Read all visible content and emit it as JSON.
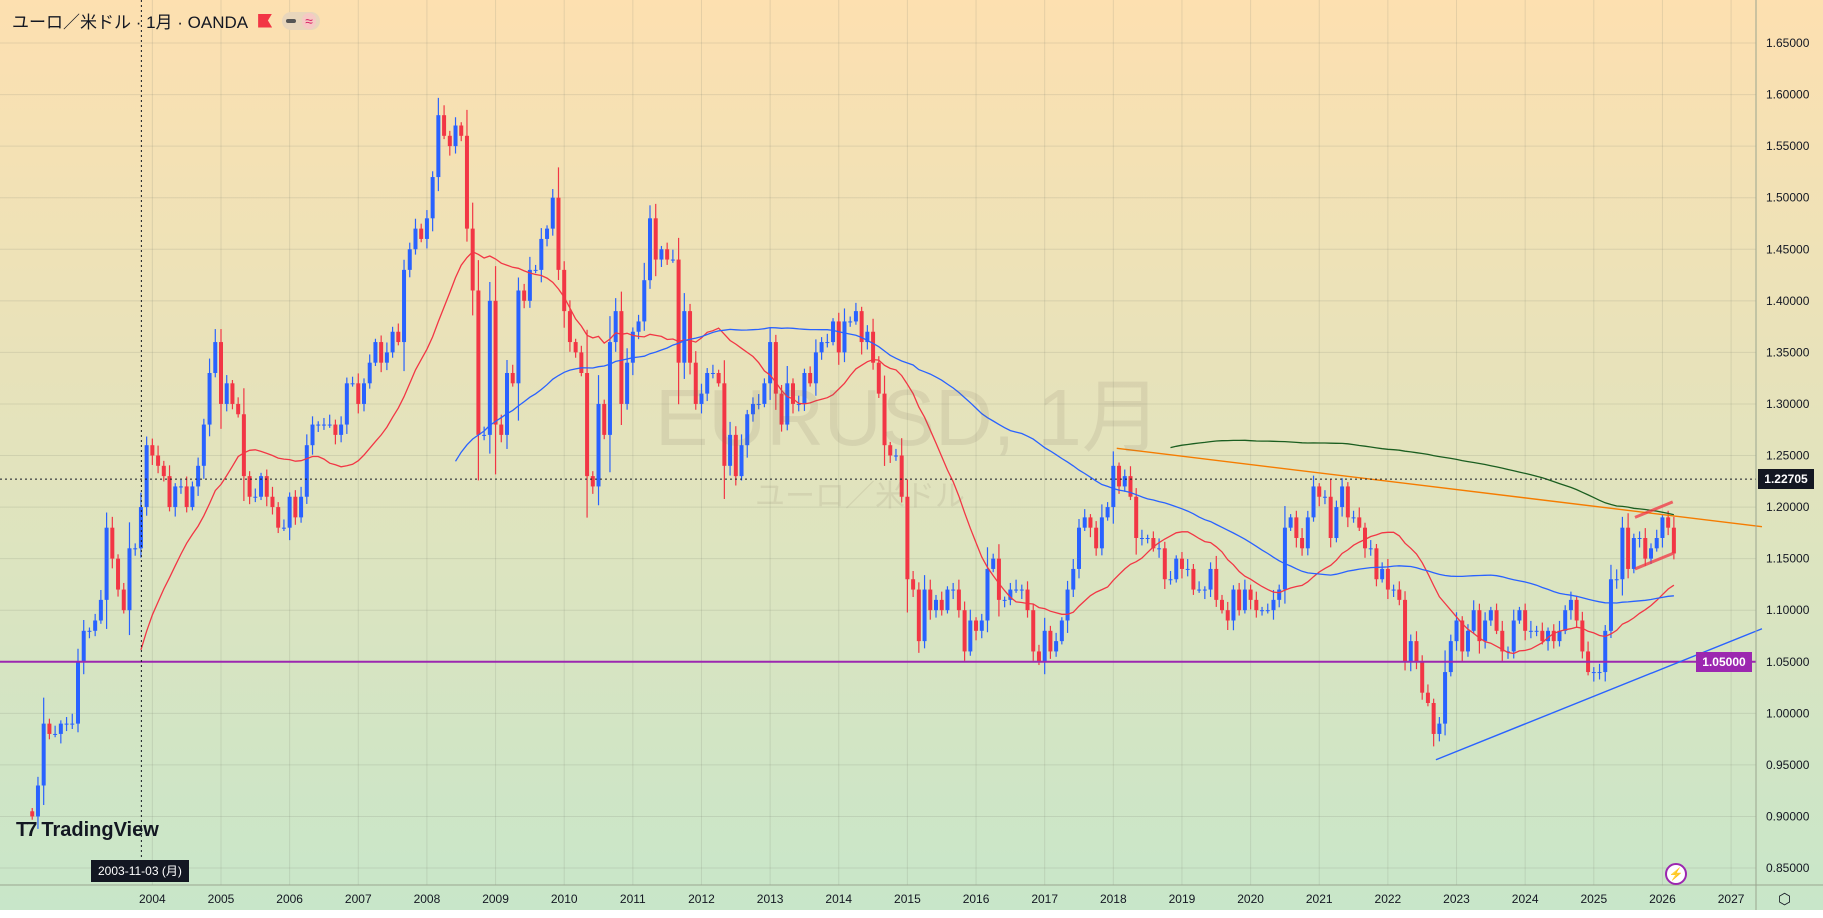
{
  "header": {
    "symbol_title": "ユーロ／米ドル · 1月 · OANDA"
  },
  "watermark": {
    "symbol": "EURUSD, 1月",
    "name": "ユーロ／米ドル"
  },
  "branding": {
    "logo_text": "TradingView"
  },
  "crosshair": {
    "date_label": "2003-11-03 (月)",
    "price_label": "1.22705",
    "price": 1.22705,
    "time": 2003.84
  },
  "colors": {
    "up": "#2962ff",
    "down": "#f23645",
    "ma_short": "#f23645",
    "ma_mid": "#2962ff",
    "ma_long": "#1b5e20",
    "bg_top": "#fde0b0",
    "bg_bottom": "#c8e6c9",
    "hline": "#9c27b0",
    "trend_resistance": "#f57c00",
    "trend_support": "#2962ff"
  },
  "chart_data": {
    "type": "candlestick",
    "title": "EURUSD, 1月",
    "interval": "1M",
    "start": 2002.25,
    "first_open": 0.905,
    "monthly_closes": {
      "2002": [
        0.9,
        0.93,
        0.99,
        0.98,
        0.98,
        0.99,
        0.99,
        0.99,
        1.05
      ],
      "2003": [
        1.08,
        1.08,
        1.09,
        1.11,
        1.18,
        1.15,
        1.12,
        1.1,
        1.16,
        1.16,
        1.2,
        1.26
      ],
      "2004": [
        1.25,
        1.24,
        1.23,
        1.2,
        1.22,
        1.22,
        1.2,
        1.22,
        1.24,
        1.28,
        1.33,
        1.36
      ],
      "2005": [
        1.3,
        1.32,
        1.3,
        1.29,
        1.23,
        1.21,
        1.21,
        1.23,
        1.21,
        1.2,
        1.18,
        1.18
      ],
      "2006": [
        1.21,
        1.19,
        1.21,
        1.26,
        1.28,
        1.28,
        1.28,
        1.28,
        1.27,
        1.28,
        1.32,
        1.32
      ],
      "2007": [
        1.3,
        1.32,
        1.34,
        1.36,
        1.34,
        1.35,
        1.37,
        1.36,
        1.43,
        1.45,
        1.47,
        1.46
      ],
      "2008": [
        1.48,
        1.52,
        1.58,
        1.56,
        1.55,
        1.57,
        1.56,
        1.47,
        1.41,
        1.27,
        1.27,
        1.4
      ],
      "2009": [
        1.28,
        1.27,
        1.33,
        1.32,
        1.41,
        1.4,
        1.43,
        1.43,
        1.46,
        1.47,
        1.5,
        1.43
      ],
      "2010": [
        1.39,
        1.36,
        1.35,
        1.33,
        1.23,
        1.22,
        1.3,
        1.27,
        1.36,
        1.39,
        1.3,
        1.34
      ],
      "2011": [
        1.37,
        1.38,
        1.42,
        1.48,
        1.44,
        1.45,
        1.44,
        1.44,
        1.34,
        1.39,
        1.34,
        1.3
      ],
      "2012": [
        1.31,
        1.33,
        1.33,
        1.32,
        1.24,
        1.27,
        1.23,
        1.26,
        1.29,
        1.3,
        1.3,
        1.32
      ],
      "2013": [
        1.36,
        1.31,
        1.28,
        1.32,
        1.3,
        1.3,
        1.33,
        1.32,
        1.35,
        1.36,
        1.36,
        1.38
      ],
      "2014": [
        1.35,
        1.38,
        1.38,
        1.39,
        1.36,
        1.37,
        1.34,
        1.31,
        1.26,
        1.25,
        1.25,
        1.21
      ],
      "2015": [
        1.13,
        1.12,
        1.07,
        1.12,
        1.1,
        1.11,
        1.1,
        1.12,
        1.12,
        1.1,
        1.06,
        1.09
      ],
      "2016": [
        1.08,
        1.09,
        1.14,
        1.15,
        1.11,
        1.11,
        1.12,
        1.12,
        1.12,
        1.1,
        1.06,
        1.05
      ],
      "2017": [
        1.08,
        1.06,
        1.07,
        1.09,
        1.12,
        1.14,
        1.18,
        1.19,
        1.18,
        1.16,
        1.19,
        1.2
      ],
      "2018": [
        1.24,
        1.22,
        1.23,
        1.21,
        1.17,
        1.17,
        1.17,
        1.16,
        1.16,
        1.13,
        1.13,
        1.15
      ],
      "2019": [
        1.14,
        1.14,
        1.12,
        1.12,
        1.12,
        1.14,
        1.11,
        1.1,
        1.09,
        1.12,
        1.1,
        1.12
      ],
      "2020": [
        1.11,
        1.1,
        1.1,
        1.1,
        1.11,
        1.12,
        1.18,
        1.19,
        1.17,
        1.16,
        1.19,
        1.22
      ],
      "2021": [
        1.21,
        1.21,
        1.17,
        1.2,
        1.22,
        1.19,
        1.19,
        1.18,
        1.16,
        1.16,
        1.13,
        1.14
      ],
      "2022": [
        1.12,
        1.12,
        1.11,
        1.05,
        1.07,
        1.05,
        1.02,
        1.01,
        0.98,
        0.99,
        1.04,
        1.07
      ],
      "2023": [
        1.09,
        1.06,
        1.08,
        1.1,
        1.07,
        1.09,
        1.1,
        1.08,
        1.06,
        1.06,
        1.09,
        1.1
      ],
      "2024": [
        1.08,
        1.08,
        1.08,
        1.07,
        1.08,
        1.07,
        1.08,
        1.1,
        1.11,
        1.09,
        1.06,
        1.04
      ],
      "2025": [
        1.04,
        1.04,
        1.08,
        1.13,
        1.13,
        1.18,
        1.14,
        1.17,
        1.17,
        1.15,
        1.16,
        1.17
      ],
      "2026": [
        1.19,
        1.18,
        1.155
      ]
    },
    "moving_averages": [
      {
        "name": "MA short",
        "period": 20,
        "color_key": "ma_short"
      },
      {
        "name": "MA mid",
        "period": 75,
        "color_key": "ma_mid"
      },
      {
        "name": "MA long",
        "period": 200,
        "color_key": "ma_long"
      }
    ],
    "drawings": [
      {
        "name": "horizontal-line",
        "type": "hline",
        "price": 1.05,
        "color_key": "hline",
        "label": "1.05000"
      },
      {
        "name": "resistance-trendline",
        "type": "line",
        "from": [
          2018.05,
          1.257
        ],
        "to": [
          2027.45,
          1.181
        ],
        "color_key": "trend_resistance"
      },
      {
        "name": "support-trendline",
        "type": "line",
        "from": [
          2022.7,
          0.955
        ],
        "to": [
          2027.45,
          1.082
        ],
        "color_key": "trend_support"
      },
      {
        "name": "triangle-upper",
        "type": "line",
        "from": [
          2025.6,
          1.19
        ],
        "to": [
          2026.15,
          1.205
        ],
        "color_key": "ma_short"
      },
      {
        "name": "triangle-lower",
        "type": "line",
        "from": [
          2025.6,
          1.14
        ],
        "to": [
          2026.15,
          1.155
        ],
        "color_key": "ma_short"
      }
    ],
    "y_axis": {
      "ylim": [
        0.85,
        1.65
      ],
      "ticks": [
        "1.65000",
        "1.60000",
        "1.55000",
        "1.50000",
        "1.45000",
        "1.40000",
        "1.35000",
        "1.30000",
        "1.25000",
        "1.20000",
        "1.15000",
        "1.10000",
        "1.05000",
        "1.00000",
        "0.95000",
        "0.90000",
        "0.85000"
      ]
    },
    "x_axis": {
      "ticks": [
        "2004",
        "2005",
        "2006",
        "2007",
        "2008",
        "2009",
        "2010",
        "2011",
        "2012",
        "2013",
        "2014",
        "2015",
        "2016",
        "2017",
        "2018",
        "2019",
        "2020",
        "2021",
        "2022",
        "2023",
        "2024",
        "2025",
        "2026",
        "2027"
      ]
    },
    "grid": true
  }
}
